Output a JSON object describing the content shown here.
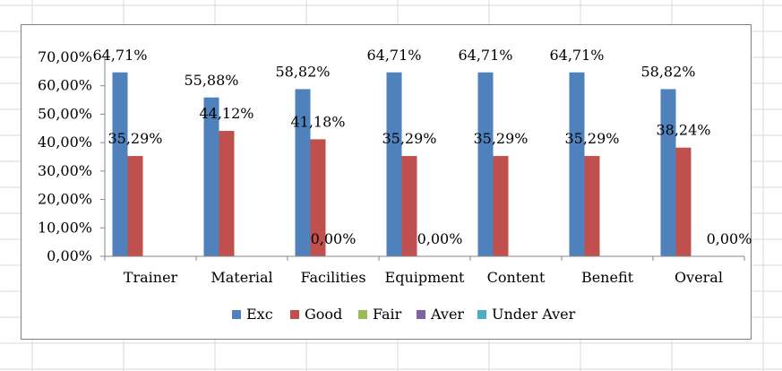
{
  "chart_data": {
    "type": "bar",
    "categories": [
      "Trainer",
      "Material",
      "Facilities",
      "Equipment",
      "Content",
      "Benefit",
      "Overal"
    ],
    "series": [
      {
        "name": "Exc",
        "color": "#4f81bd",
        "values": [
          64.71,
          55.88,
          58.82,
          64.71,
          64.71,
          64.71,
          58.82
        ],
        "labels": [
          "64,71%",
          "55,88%",
          "58,82%",
          "64,71%",
          "64,71%",
          "64,71%",
          "58,82%"
        ]
      },
      {
        "name": "Good",
        "color": "#c0504d",
        "values": [
          35.29,
          44.12,
          41.18,
          35.29,
          35.29,
          35.29,
          38.24
        ],
        "labels": [
          "35,29%",
          "44,12%",
          "41,18%",
          "35,29%",
          "35,29%",
          "35,29%",
          "38,24%"
        ]
      },
      {
        "name": "Fair",
        "color": "#9bbb59",
        "values": [
          0,
          0,
          0,
          0,
          0,
          0,
          0
        ],
        "labels": [
          "",
          "",
          "0,00%",
          "",
          "",
          "",
          ""
        ]
      },
      {
        "name": "Aver",
        "color": "#8064a2",
        "values": [
          0,
          0,
          0,
          0,
          0,
          0,
          0
        ],
        "labels": [
          "",
          "",
          "",
          "0,00%",
          "",
          "",
          ""
        ]
      },
      {
        "name": "Under Aver",
        "color": "#4bacc6",
        "values": [
          0,
          0,
          0,
          0,
          0,
          0,
          0
        ],
        "labels": [
          "",
          "",
          "",
          "",
          "",
          "",
          "0,00%"
        ]
      }
    ],
    "yticks": [
      "0,00%",
      "10,00%",
      "20,00%",
      "30,00%",
      "40,00%",
      "50,00%",
      "60,00%",
      "70,00%"
    ],
    "ylim": [
      0,
      70
    ],
    "title": "",
    "xlabel": "",
    "ylabel": "",
    "legend_position": "bottom",
    "grid": false
  }
}
